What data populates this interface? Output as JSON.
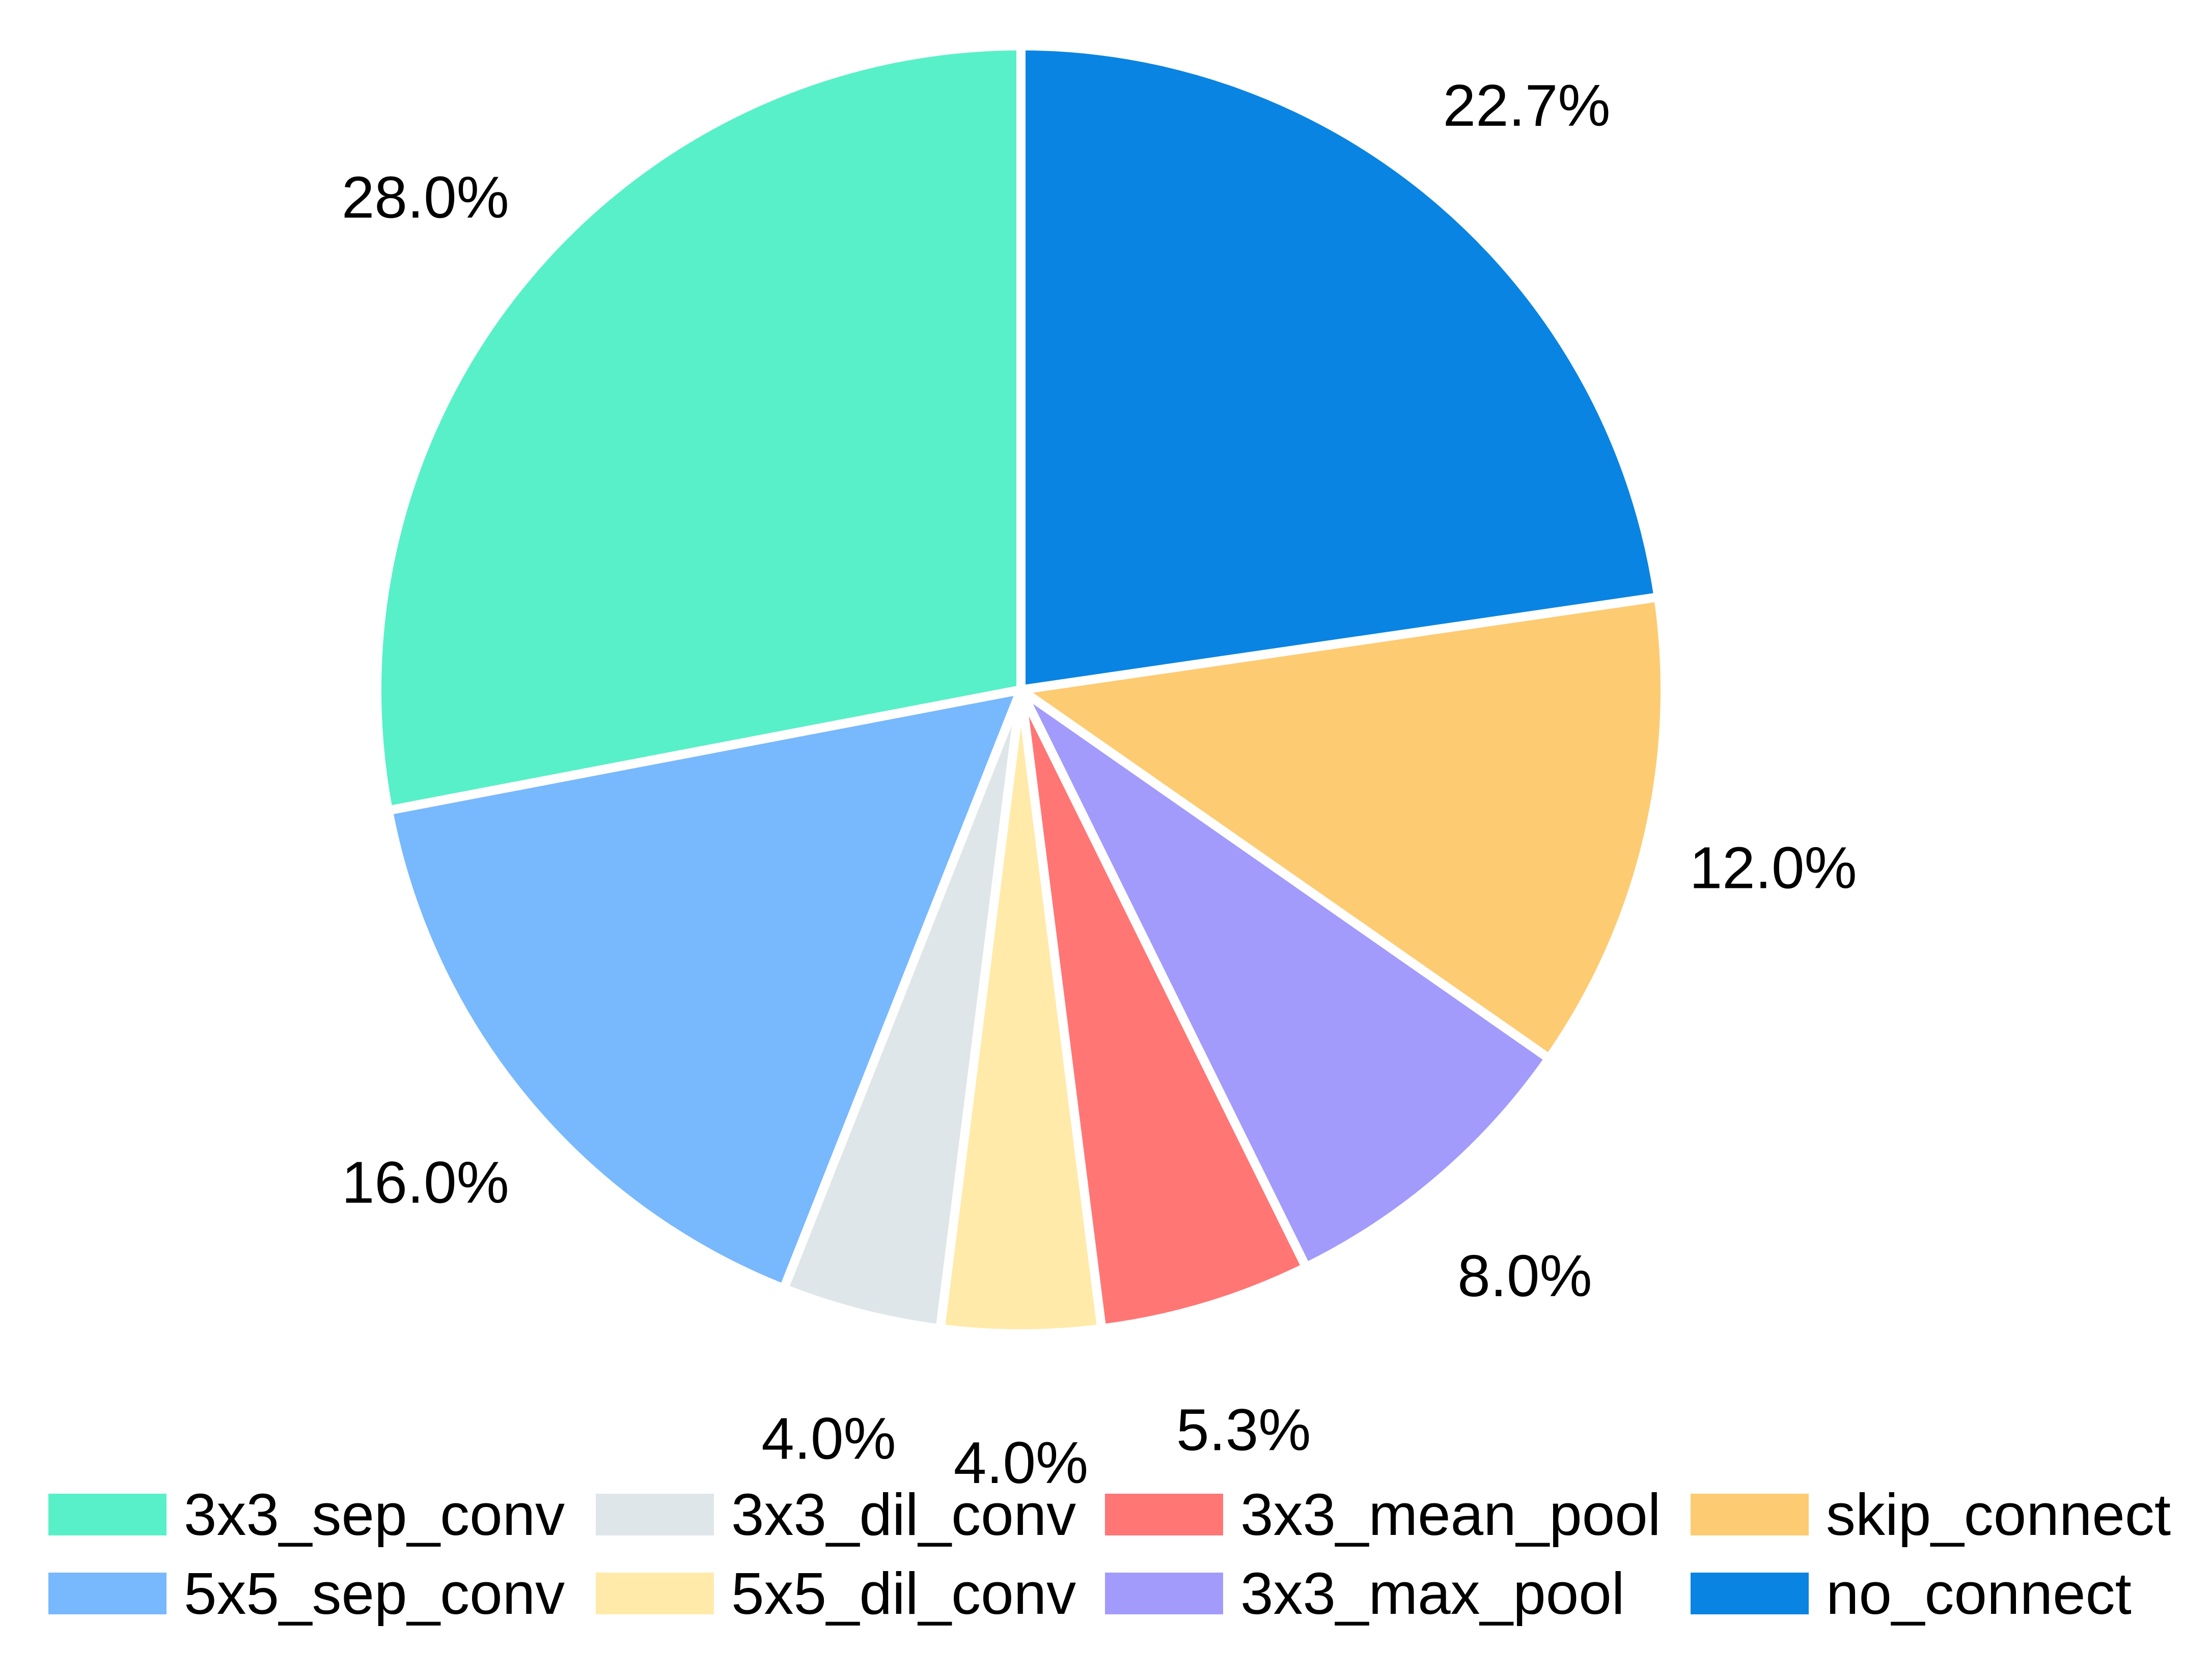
{
  "chart_data": {
    "type": "pie",
    "title": "",
    "slices": [
      {
        "label": "3x3_sep_conv",
        "value": 28.0,
        "display": "28.0%",
        "color": "#58F0C8"
      },
      {
        "label": "5x5_sep_conv",
        "value": 16.0,
        "display": "16.0%",
        "color": "#78B8FD"
      },
      {
        "label": "3x3_dil_conv",
        "value": 4.0,
        "display": "4.0%",
        "color": "#DFE6E9"
      },
      {
        "label": "5x5_dil_conv",
        "value": 4.0,
        "display": "4.0%",
        "color": "#FFEAA9"
      },
      {
        "label": "3x3_mean_pool",
        "value": 5.3,
        "display": "5.3%",
        "color": "#FF7675"
      },
      {
        "label": "3x3_max_pool",
        "value": 8.0,
        "display": "8.0%",
        "color": "#A29BFC"
      },
      {
        "label": "skip_connect",
        "value": 12.0,
        "display": "12.0%",
        "color": "#FDCB72"
      },
      {
        "label": "no_connect",
        "value": 22.7,
        "display": "22.7%",
        "color": "#0984E2"
      }
    ],
    "start_angle": "top (12 o'clock)",
    "direction": "counterclockwise",
    "legend_placement": "bottom",
    "legend_columns": 4,
    "edge_color": "#FFFFFF"
  }
}
